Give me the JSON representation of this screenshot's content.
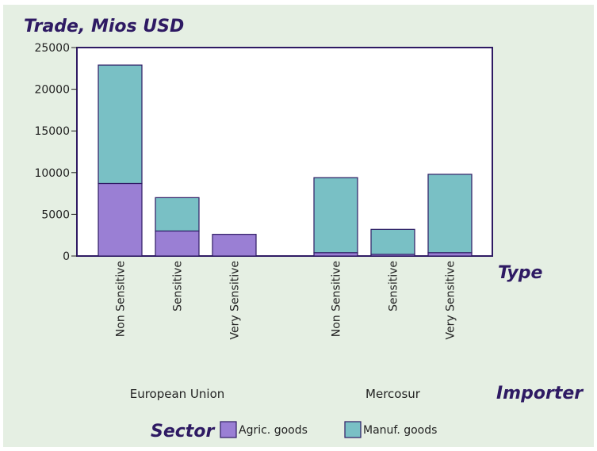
{
  "chart_data": {
    "type": "bar",
    "stacked": true,
    "title": "Trade, Mios USD",
    "x_axis_title": "Type",
    "group_axis_title": "Importer",
    "legend_title": "Sector",
    "legend_position": "bottom",
    "ylim": [
      0,
      25000
    ],
    "yticks": [
      0,
      5000,
      10000,
      15000,
      20000,
      25000
    ],
    "groups": [
      {
        "name": "European Union",
        "categories": [
          "Non Sensitive",
          "Sensitive",
          "Very Sensitive"
        ]
      },
      {
        "name": "Mercosur",
        "categories": [
          "Non Sensitive",
          "Sensitive",
          "Very Sensitive"
        ]
      }
    ],
    "series": [
      {
        "name": "Agric. goods",
        "color": "#9a7fd4",
        "values": [
          8700,
          3000,
          2600,
          400,
          200,
          400
        ]
      },
      {
        "name": "Manuf. goods",
        "color": "#79c0c5",
        "values": [
          14200,
          4000,
          0,
          9000,
          3000,
          9400
        ]
      }
    ]
  }
}
